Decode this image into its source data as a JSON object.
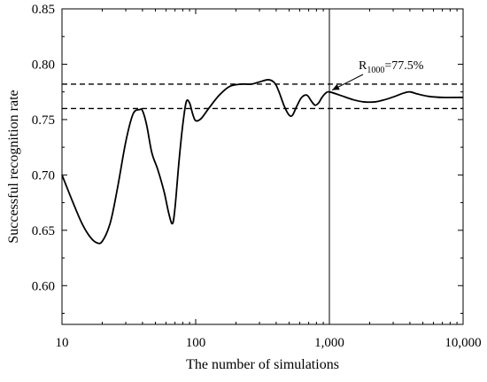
{
  "chart_data": {
    "type": "line",
    "xlabel": "The number of simulations",
    "ylabel": "Successful recognition rate",
    "x_scale": "log",
    "xlim": [
      10,
      10000
    ],
    "ylim": [
      0.565,
      0.85
    ],
    "x_ticks": [
      10,
      100,
      1000,
      10000
    ],
    "x_tick_labels": [
      "10",
      "100",
      "1,000",
      "10,000"
    ],
    "y_ticks": [
      0.6,
      0.65,
      0.7,
      0.75,
      0.8,
      0.85
    ],
    "y_tick_labels": [
      "0.60",
      "0.65",
      "0.70",
      "0.75",
      "0.80",
      "0.85"
    ],
    "grid": false,
    "series": [
      {
        "x": [
          10,
          12,
          14,
          16,
          18,
          20,
          23,
          26,
          30,
          34,
          38,
          40,
          43,
          47,
          52,
          58,
          63,
          67,
          70,
          75,
          80,
          85,
          90,
          95,
          100,
          110,
          125,
          150,
          180,
          220,
          260,
          300,
          350,
          390,
          420,
          460,
          500,
          530,
          570,
          620,
          680,
          730,
          780,
          830,
          880,
          940,
          1000,
          1200,
          1500,
          1800,
          2200,
          2600,
          3100,
          3600,
          4000,
          4600,
          5500,
          7000,
          10000
        ],
        "y": [
          0.7,
          0.676,
          0.657,
          0.645,
          0.639,
          0.64,
          0.657,
          0.688,
          0.73,
          0.755,
          0.759,
          0.758,
          0.745,
          0.72,
          0.705,
          0.685,
          0.665,
          0.656,
          0.67,
          0.712,
          0.745,
          0.766,
          0.765,
          0.755,
          0.749,
          0.751,
          0.76,
          0.772,
          0.78,
          0.782,
          0.782,
          0.784,
          0.786,
          0.783,
          0.775,
          0.762,
          0.754,
          0.754,
          0.762,
          0.77,
          0.772,
          0.767,
          0.763,
          0.765,
          0.77,
          0.774,
          0.775,
          0.772,
          0.768,
          0.766,
          0.766,
          0.768,
          0.771,
          0.774,
          0.775,
          0.773,
          0.771,
          0.77,
          0.77
        ],
        "color": "#000000"
      }
    ],
    "reference_lines": {
      "horizontal": [
        0.782,
        0.76
      ],
      "vertical": [
        1000
      ]
    },
    "annotation": {
      "base": "R",
      "subscript": "1000",
      "text": "=77.5%",
      "x": 1000,
      "y": 0.775
    }
  }
}
